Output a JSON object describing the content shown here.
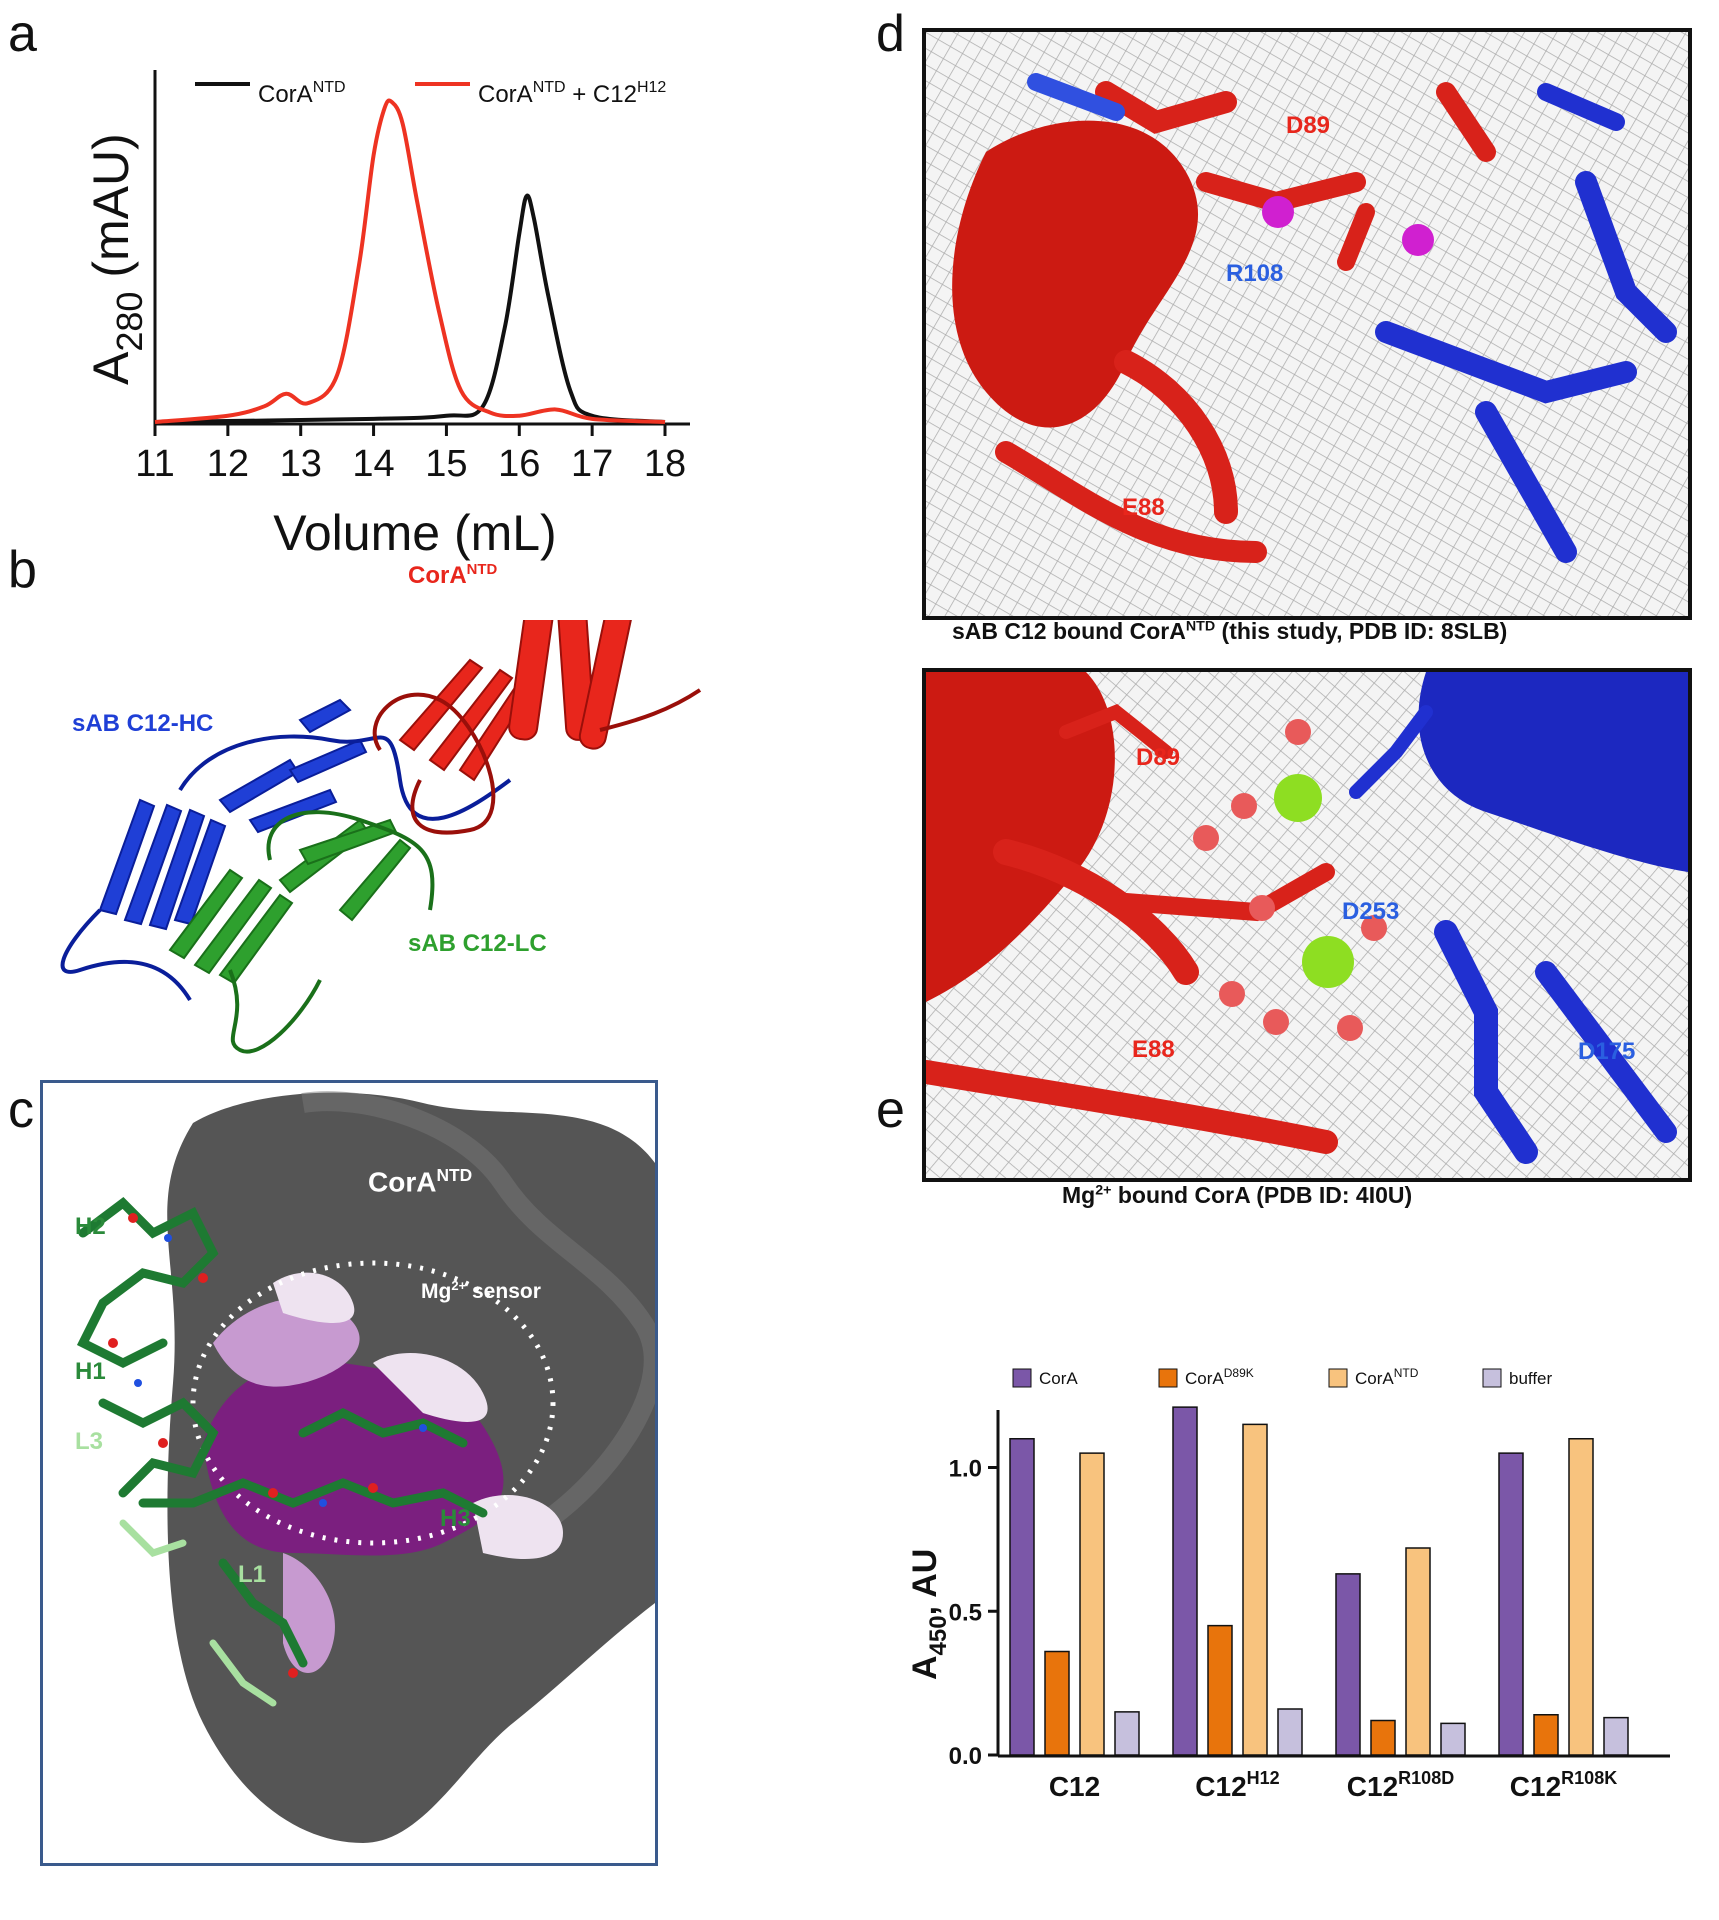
{
  "panels": {
    "a": "a",
    "b": "b",
    "c": "c",
    "d": "d",
    "e": "e"
  },
  "panel_a": {
    "legend": [
      {
        "base": "CorA",
        "sup": "NTD",
        "suffix": "",
        "suffix_sup": "",
        "color": "#111111"
      },
      {
        "base": "CorA",
        "sup": "NTD",
        "suffix": " + C12",
        "suffix_sup": "H12",
        "color": "#ee3322"
      }
    ],
    "ylabel_main": "A",
    "ylabel_sub": "280",
    "ylabel_rest": " (mAU)",
    "xlabel": "Volume (mL)",
    "xticks": [
      "11",
      "12",
      "13",
      "14",
      "15",
      "16",
      "17",
      "18"
    ]
  },
  "chart_data": [
    {
      "type": "line",
      "title": "",
      "xlabel": "Volume (mL)",
      "ylabel": "A280 (mAU)",
      "xlim": [
        11,
        18
      ],
      "grid": false,
      "legend_placement": "top",
      "series": [
        {
          "name": "CorA NTD",
          "color": "#111111",
          "x": [
            11.0,
            14.0,
            15.0,
            15.5,
            15.8,
            16.0,
            16.1,
            16.2,
            16.4,
            16.7,
            17.0,
            18.0
          ],
          "y": [
            0.0,
            0.01,
            0.02,
            0.05,
            0.3,
            0.6,
            0.72,
            0.65,
            0.4,
            0.1,
            0.02,
            0.0
          ]
        },
        {
          "name": "CorA NTD + C12 H12",
          "color": "#ee3322",
          "x": [
            11.0,
            12.0,
            12.5,
            12.8,
            13.1,
            13.5,
            13.8,
            14.0,
            14.15,
            14.25,
            14.4,
            14.6,
            14.9,
            15.2,
            15.6,
            16.0,
            16.5,
            17.0,
            18.0
          ],
          "y": [
            0.0,
            0.02,
            0.05,
            0.09,
            0.06,
            0.15,
            0.5,
            0.85,
            1.0,
            1.02,
            0.95,
            0.7,
            0.35,
            0.1,
            0.03,
            0.02,
            0.04,
            0.01,
            0.0
          ]
        }
      ]
    },
    {
      "type": "bar",
      "title": "",
      "xlabel": "",
      "ylabel": "A450, AU",
      "ylim": [
        0,
        1.2
      ],
      "yticks": [
        "0.0",
        "0.5",
        "1.0"
      ],
      "grid": false,
      "legend_placement": "top",
      "categories": [
        "C12",
        "C12H12",
        "C12R108D",
        "C12R108K"
      ],
      "series": [
        {
          "name": "CorA",
          "color": "#7b57a8",
          "values": [
            1.1,
            1.21,
            0.63,
            1.05
          ]
        },
        {
          "name": "CorAD89K",
          "color": "#e8740c",
          "values": [
            0.36,
            0.45,
            0.12,
            0.14
          ]
        },
        {
          "name": "CorANTD",
          "color": "#f8c37e",
          "values": [
            1.05,
            1.15,
            0.72,
            1.1
          ]
        },
        {
          "name": "buffer",
          "color": "#c6c0dd",
          "values": [
            0.15,
            0.16,
            0.11,
            0.13
          ]
        }
      ]
    }
  ],
  "panel_b": {
    "cora": {
      "base": "CorA",
      "sup": "NTD",
      "color": "#e8261c"
    },
    "hc": {
      "text": "sAB C12-HC",
      "color": "#1f3fd6"
    },
    "lc": {
      "text": "sAB C12-LC",
      "color": "#2ea02e"
    }
  },
  "panel_c": {
    "cora": {
      "base": "CorA",
      "sup": "NTD"
    },
    "sensor": {
      "pre": "Mg",
      "sup": "2+",
      "post": " sensor"
    },
    "loops": [
      {
        "text": "H2",
        "color": "#2a8a3a"
      },
      {
        "text": "H1",
        "color": "#2a8a3a"
      },
      {
        "text": "L3",
        "color": "#a8e0a0"
      },
      {
        "text": "H3",
        "color": "#2a8a3a"
      },
      {
        "text": "L1",
        "color": "#a8e0a0"
      }
    ]
  },
  "panel_d": {
    "top_labels": [
      {
        "text": "D89",
        "color": "#e8261c"
      },
      {
        "text": "R108",
        "color": "#2a5fe0"
      },
      {
        "text": "E88",
        "color": "#e8261c"
      }
    ],
    "top_caption": {
      "pre": "sAB C12 bound CorA",
      "sup": "NTD",
      "post": " (this study, PDB ID: 8SLB)"
    },
    "bottom_labels": [
      {
        "text": "D89",
        "color": "#e8261c"
      },
      {
        "text": "D253",
        "color": "#2a5fe0"
      },
      {
        "text": "E88",
        "color": "#e8261c"
      },
      {
        "text": "D175",
        "color": "#2a5fe0"
      }
    ],
    "bottom_caption": {
      "pre": "Mg",
      "sup": "2+",
      "post": " bound CorA (PDB ID: 4I0U)"
    }
  },
  "panel_e": {
    "legend": [
      {
        "base": "CorA",
        "sup": "",
        "color": "#7b57a8"
      },
      {
        "base": "CorA",
        "sup": "D89K",
        "color": "#e8740c"
      },
      {
        "base": "CorA",
        "sup": "NTD",
        "color": "#f8c37e"
      },
      {
        "base": "buffer",
        "sup": "",
        "color": "#c6c0dd"
      }
    ],
    "ylabel_main": "A",
    "ylabel_sub": "450",
    "ylabel_rest": ", AU",
    "yticks": [
      "0.0",
      "0.5",
      "1.0"
    ],
    "categories": [
      {
        "base": "C12",
        "sup": ""
      },
      {
        "base": "C12",
        "sup": "H12"
      },
      {
        "base": "C12",
        "sup": "R108D"
      },
      {
        "base": "C12",
        "sup": "R108K"
      }
    ]
  }
}
